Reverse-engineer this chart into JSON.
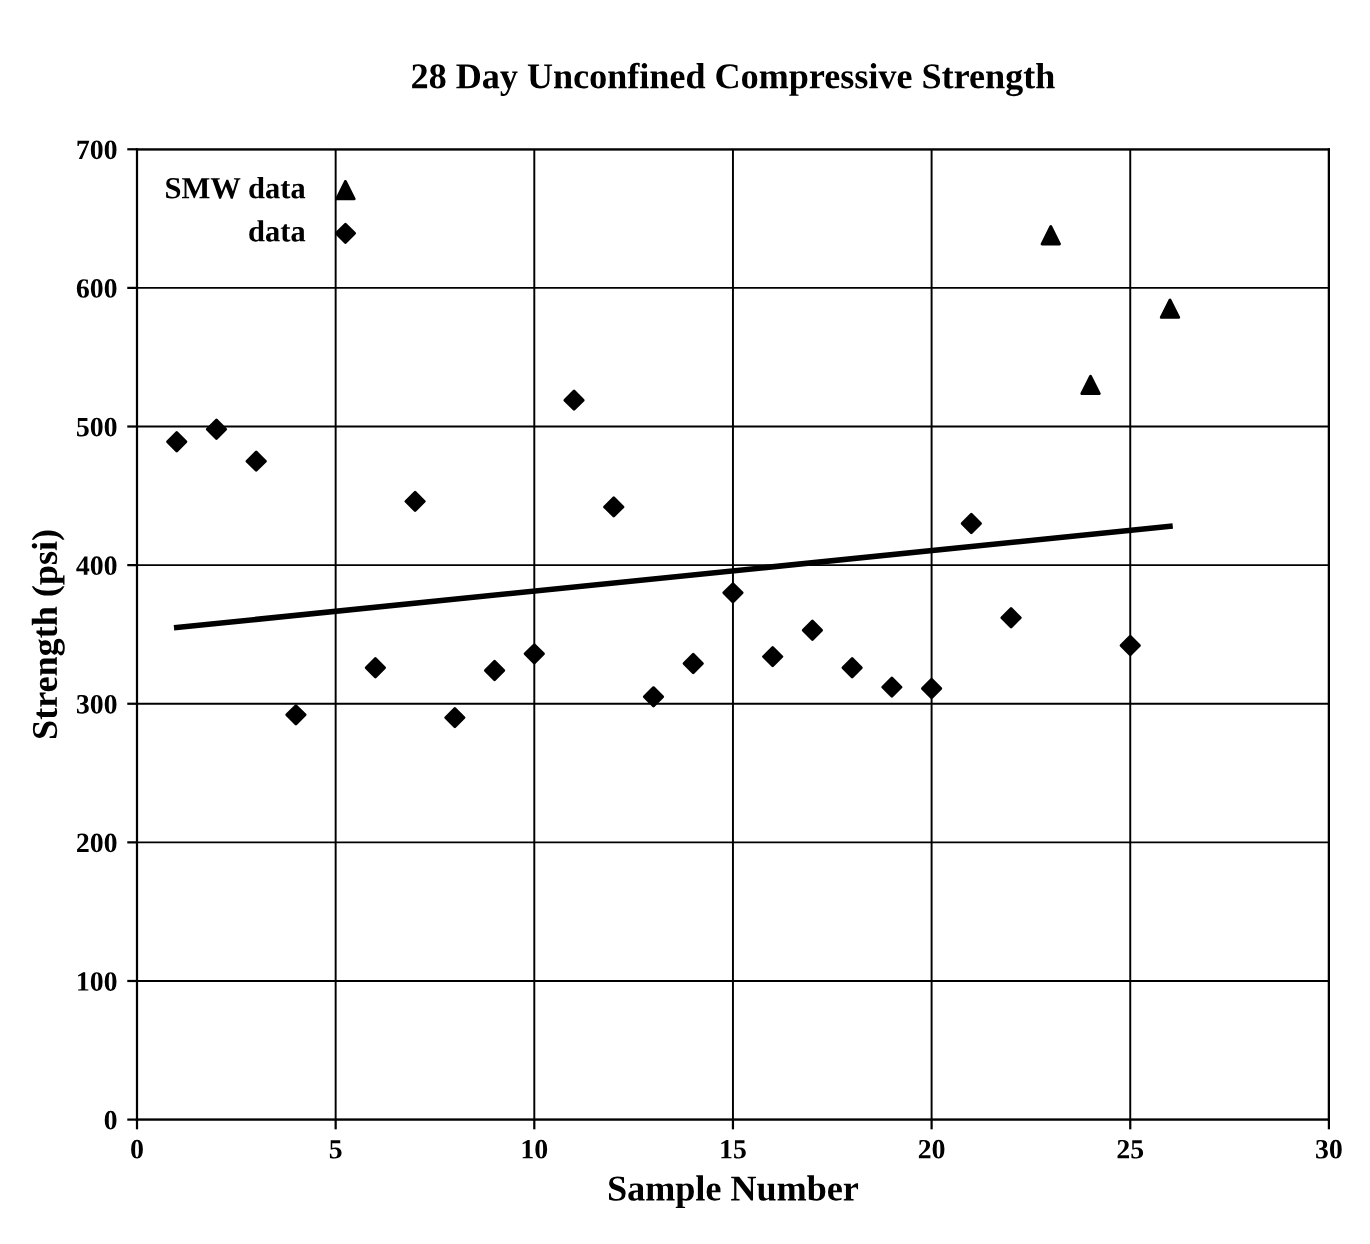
{
  "chart_data": {
    "type": "scatter",
    "title": "28 Day Unconfined Compressive Strength",
    "xlabel": "Sample Number",
    "ylabel": "Strength (psi)",
    "xlim": [
      0,
      30
    ],
    "xticks": [
      0,
      5,
      10,
      15,
      20,
      25,
      30
    ],
    "ylim": [
      0,
      700
    ],
    "yticks": [
      0,
      100,
      200,
      300,
      400,
      500,
      600,
      700
    ],
    "grid": true,
    "legend": "top left",
    "series": [
      {
        "name": "SMW data",
        "color": "#000000",
        "marker": "triangle",
        "x": [
          23,
          24,
          26
        ],
        "values": [
          638,
          530,
          585
        ]
      },
      {
        "name": "data",
        "color": "#000000",
        "marker": "diamond",
        "x": [
          1,
          2,
          3,
          4,
          6,
          7,
          8,
          9,
          10,
          11,
          12,
          13,
          14,
          15,
          16,
          17,
          18,
          19,
          20,
          21,
          22,
          25
        ],
        "values": [
          489,
          498,
          475,
          292,
          326,
          446,
          290,
          324,
          336,
          519,
          442,
          305,
          329,
          380,
          334,
          353,
          326,
          312,
          311,
          430,
          362,
          342
        ]
      },
      {
        "type": "line",
        "color": "#000000",
        "marker": "none",
        "line_style": "solid",
        "x": [
          1,
          26
        ],
        "values": [
          355,
          428
        ]
      }
    ]
  }
}
